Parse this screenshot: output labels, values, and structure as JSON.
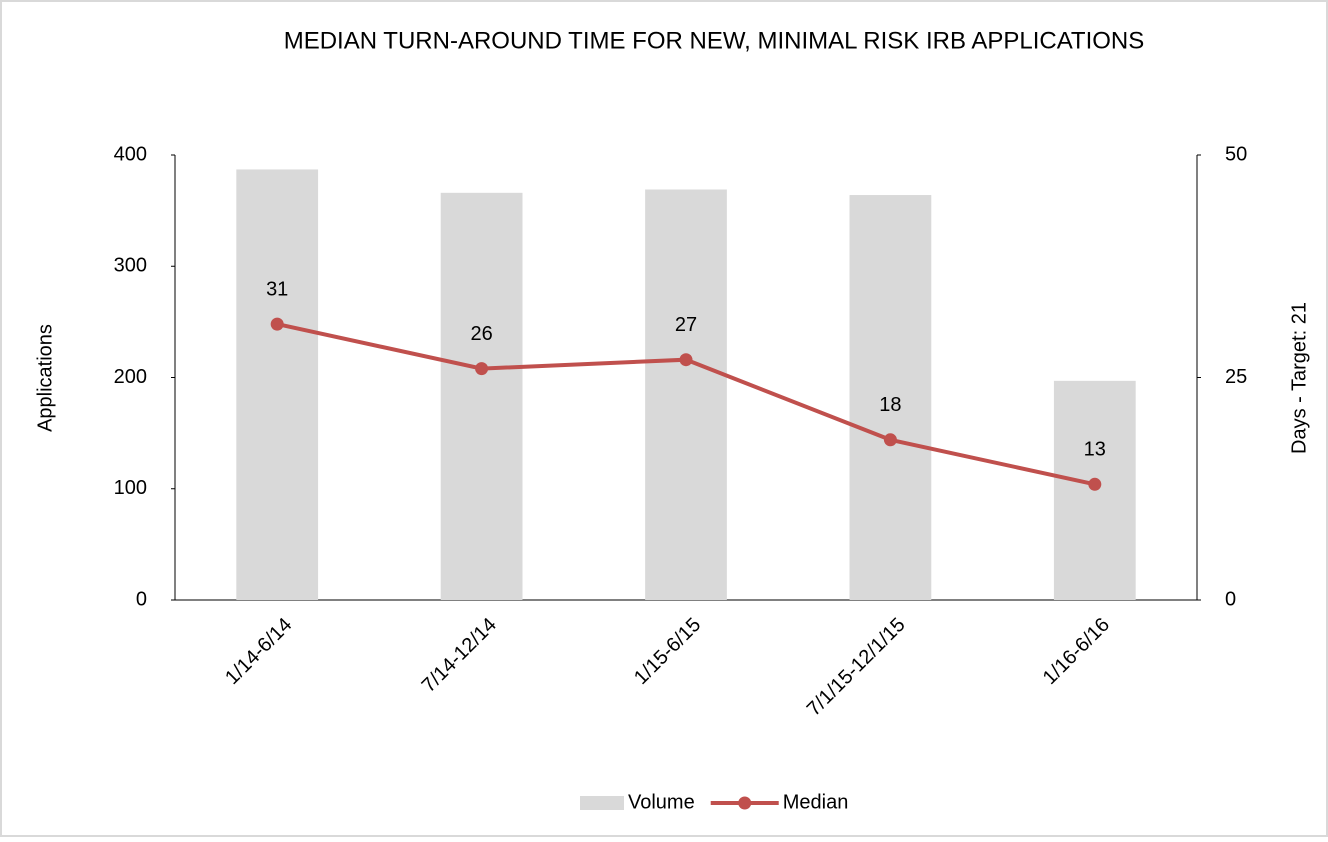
{
  "chart_data": {
    "type": "combo",
    "title": "MEDIAN TURN-AROUND TIME FOR NEW, MINIMAL RISK IRB APPLICATIONS",
    "categories": [
      "1/14-6/14",
      "7/14-12/14",
      "1/15-6/15",
      "7/1/15-12/1/15",
      "1/16-6/16"
    ],
    "series": [
      {
        "name": "Volume",
        "type": "bar",
        "color": "#d9d9d9",
        "values": [
          387,
          366,
          369,
          364,
          197
        ]
      },
      {
        "name": "Median",
        "type": "line",
        "axis": "y2",
        "color": "#c0504d",
        "values": [
          31,
          26,
          27,
          18,
          13
        ]
      }
    ],
    "ylabel": "Applications",
    "y2label": "Days - Target: 21",
    "ylim": [
      0,
      400
    ],
    "yticks": [
      0,
      100,
      200,
      300,
      400
    ],
    "y2lim": [
      0,
      50
    ],
    "y2ticks": [
      0,
      25,
      50
    ],
    "grid": false,
    "legend": "bottom"
  }
}
